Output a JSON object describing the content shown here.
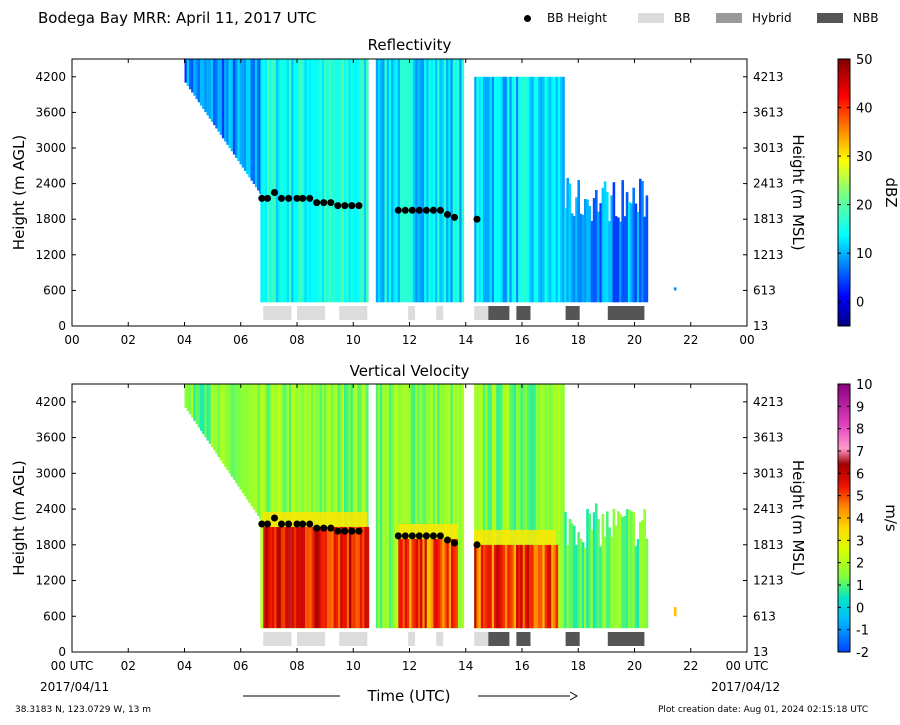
{
  "figure": {
    "title": "Bodega Bay MRR:  April 11, 2017 UTC",
    "footer_left": "38.3183 N, 123.0729 W, 13 m",
    "footer_right": "Plot creation date: Aug 01, 2024 02:15:18 UTC",
    "xlabel": "Time (UTC)",
    "x_start_label": "00 UTC",
    "x_end_label": "00 UTC",
    "date_start": "2017/04/11",
    "date_end": "2017/04/12"
  },
  "legend": [
    {
      "label": "BB Height",
      "kind": "dot",
      "color": "#000000"
    },
    {
      "label": "BB",
      "kind": "swatch",
      "color": "#dcdcdc"
    },
    {
      "label": "Hybrid",
      "kind": "swatch",
      "color": "#9a9a9a"
    },
    {
      "label": "NBB",
      "kind": "swatch",
      "color": "#555555"
    }
  ],
  "colors": {
    "bb": "#dcdcdc",
    "hybrid": "#9a9a9a",
    "nbb": "#555555"
  },
  "chart_data": [
    {
      "type": "heatmap",
      "title": "Reflectivity",
      "ylabel_left": "Height (m AGL)",
      "ylabel_right": "Height (m MSL)",
      "xlim": [
        0,
        24
      ],
      "ylim": [
        0,
        4500
      ],
      "x_ticks": [
        "00",
        "02",
        "04",
        "06",
        "08",
        "10",
        "12",
        "14",
        "16",
        "18",
        "20",
        "22",
        "00"
      ],
      "y_ticks_left": [
        0,
        600,
        1200,
        1800,
        2400,
        3000,
        3600,
        4200
      ],
      "y_ticks_right": [
        13,
        613,
        1213,
        1813,
        2413,
        3013,
        3613,
        4213
      ],
      "colorbar": {
        "label": "dBZ",
        "min": -5,
        "max": 50,
        "ticks": [
          0,
          10,
          20,
          30,
          40,
          50
        ]
      },
      "echo_segments": [
        {
          "start": 4.0,
          "end": 6.7,
          "top": 4500,
          "bottom_start": 4100,
          "bottom_end": 2200,
          "level": 8
        },
        {
          "start": 6.7,
          "end": 10.5,
          "top": 4500,
          "bottom_start": 400,
          "bottom_end": 400,
          "level": 15
        },
        {
          "start": 10.8,
          "end": 13.9,
          "top": 4500,
          "bottom_start": 400,
          "bottom_end": 400,
          "level": 13
        },
        {
          "start": 14.3,
          "end": 17.5,
          "top": 4200,
          "bottom_start": 400,
          "bottom_end": 400,
          "level": 12
        },
        {
          "start": 17.5,
          "end": 20.4,
          "top": 2500,
          "bottom_start": 400,
          "bottom_end": 400,
          "level": 8
        },
        {
          "start": 21.4,
          "end": 21.45,
          "top": 900,
          "bottom_start": 600,
          "bottom_end": 600,
          "level": 10
        }
      ]
    },
    {
      "type": "heatmap",
      "title": "Vertical Velocity",
      "ylabel_left": "Height (m AGL)",
      "ylabel_right": "Height (m MSL)",
      "xlim": [
        0,
        24
      ],
      "ylim": [
        0,
        4500
      ],
      "x_ticks": [
        "00",
        "02",
        "04",
        "06",
        "08",
        "10",
        "12",
        "14",
        "16",
        "18",
        "20",
        "22",
        "00"
      ],
      "y_ticks_left": [
        0,
        600,
        1200,
        1800,
        2400,
        3000,
        3600,
        4200
      ],
      "y_ticks_right": [
        13,
        613,
        1213,
        1813,
        2413,
        3013,
        3613,
        4213
      ],
      "colorbar": {
        "label": "m/s",
        "min": -2,
        "max": 10,
        "ticks": [
          -2,
          -1,
          0,
          1,
          2,
          3,
          4,
          5,
          6,
          7,
          8,
          9,
          10
        ]
      },
      "echo_segments": [
        {
          "start": 4.0,
          "end": 6.7,
          "top": 4500,
          "bottom_start": 4100,
          "bottom_end": 2200,
          "level": 1.3
        },
        {
          "start": 6.7,
          "end": 10.5,
          "top": 4500,
          "bottom_start": 400,
          "bottom_end": 400,
          "level": 1.5
        },
        {
          "start": 10.8,
          "end": 13.9,
          "top": 4500,
          "bottom_start": 400,
          "bottom_end": 400,
          "level": 1.5
        },
        {
          "start": 14.3,
          "end": 17.5,
          "top": 4500,
          "bottom_start": 400,
          "bottom_end": 400,
          "level": 1.4
        },
        {
          "start": 17.5,
          "end": 20.4,
          "top": 2500,
          "bottom_start": 400,
          "bottom_end": 400,
          "level": 1.2
        },
        {
          "start": 21.4,
          "end": 21.45,
          "top": 900,
          "bottom_start": 600,
          "bottom_end": 600,
          "level": 4
        }
      ],
      "fall_speed_segments": [
        {
          "start": 6.8,
          "end": 10.5,
          "top": 2100,
          "level": 5.6
        },
        {
          "start": 11.6,
          "end": 13.7,
          "top": 1900,
          "level": 4.8
        },
        {
          "start": 14.3,
          "end": 17.2,
          "top": 1800,
          "level": 5.0
        }
      ]
    }
  ],
  "bb_height": {
    "times": [
      6.75,
      6.95,
      7.2,
      7.45,
      7.7,
      8.0,
      8.2,
      8.45,
      8.7,
      8.95,
      9.2,
      9.45,
      9.7,
      9.95,
      10.2,
      11.6,
      11.85,
      12.1,
      12.35,
      12.6,
      12.85,
      13.1,
      13.35,
      13.6,
      14.4
    ],
    "heights": [
      2150,
      2150,
      2250,
      2150,
      2150,
      2150,
      2150,
      2150,
      2080,
      2080,
      2080,
      2030,
      2030,
      2030,
      2030,
      1950,
      1950,
      1950,
      1950,
      1950,
      1950,
      1950,
      1880,
      1830,
      1800
    ]
  },
  "bb_classification": [
    {
      "start": 6.8,
      "end": 7.8,
      "class": "BB"
    },
    {
      "start": 8.0,
      "end": 9.0,
      "class": "BB"
    },
    {
      "start": 9.5,
      "end": 10.5,
      "class": "BB"
    },
    {
      "start": 11.95,
      "end": 12.2,
      "class": "BB"
    },
    {
      "start": 12.95,
      "end": 13.2,
      "class": "BB"
    },
    {
      "start": 14.3,
      "end": 14.8,
      "class": "BB"
    },
    {
      "start": 14.8,
      "end": 15.55,
      "class": "NBB"
    },
    {
      "start": 15.8,
      "end": 16.3,
      "class": "NBB"
    },
    {
      "start": 17.55,
      "end": 18.05,
      "class": "NBB"
    },
    {
      "start": 19.05,
      "end": 20.35,
      "class": "NBB"
    }
  ]
}
